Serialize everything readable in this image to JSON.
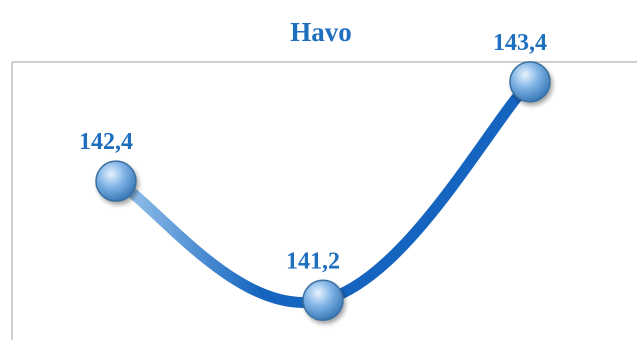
{
  "chart_data": {
    "type": "line",
    "title": "Havo",
    "categories": [
      "",
      "",
      ""
    ],
    "series": [
      {
        "values": [
          142.4,
          141.2,
          143.4
        ],
        "labels": [
          "142,4",
          "141,2",
          "143,4"
        ]
      }
    ],
    "ylim": [
      140.8,
      143.6
    ],
    "smooth": true,
    "grid": false,
    "legend": "none",
    "line_color_start": "#9cc6ec",
    "line_color_end": "#1565c0",
    "marker_color": "#5b9bd5",
    "label_color": "#1f6fbf",
    "axis_color": "#bfbfbf"
  }
}
